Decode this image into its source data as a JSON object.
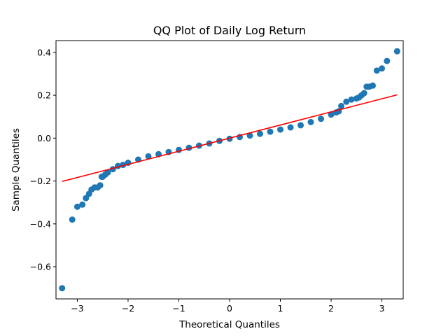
{
  "chart_data": {
    "type": "scatter",
    "title": "QQ Plot of Daily Log Return",
    "xlabel": "Theoretical Quantiles",
    "ylabel": "Sample Quantiles",
    "xlim": [
      -3.42,
      3.42
    ],
    "ylim": [
      -0.75,
      0.455
    ],
    "x_ticks": [
      -3,
      -2,
      -1,
      0,
      1,
      2,
      3
    ],
    "x_tick_labels": [
      "−3",
      "−2",
      "−1",
      "0",
      "1",
      "2",
      "3"
    ],
    "y_ticks": [
      -0.6,
      -0.4,
      -0.2,
      0.0,
      0.2,
      0.4
    ],
    "y_tick_labels": [
      "−0.6",
      "−0.4",
      "−0.2",
      "0.0",
      "0.2",
      "0.4"
    ],
    "grid": false,
    "series": [
      {
        "kind": "points",
        "color": "#1f77b4",
        "x": [
          -3.3,
          -3.1,
          -3.0,
          -2.9,
          -2.83,
          -2.77,
          -2.72,
          -2.66,
          -2.6,
          -2.55,
          -2.52,
          -2.5,
          -2.45,
          -2.4,
          -2.3,
          -2.2,
          -2.1,
          -2.0,
          -1.8,
          -1.6,
          -1.4,
          -1.2,
          -1.0,
          -0.8,
          -0.6,
          -0.4,
          -0.2,
          0.0,
          0.2,
          0.4,
          0.6,
          0.8,
          1.0,
          1.2,
          1.4,
          1.6,
          1.8,
          2.0,
          2.1,
          2.15,
          2.2,
          2.3,
          2.4,
          2.5,
          2.55,
          2.6,
          2.65,
          2.7,
          2.75,
          2.82,
          2.9,
          3.0,
          3.1,
          3.3
        ],
        "y": [
          -0.7,
          -0.38,
          -0.32,
          -0.31,
          -0.28,
          -0.26,
          -0.24,
          -0.23,
          -0.23,
          -0.22,
          -0.18,
          -0.18,
          -0.17,
          -0.16,
          -0.145,
          -0.13,
          -0.125,
          -0.115,
          -0.1,
          -0.085,
          -0.075,
          -0.065,
          -0.055,
          -0.045,
          -0.035,
          -0.025,
          -0.013,
          -0.003,
          0.005,
          0.012,
          0.02,
          0.03,
          0.04,
          0.05,
          0.06,
          0.075,
          0.09,
          0.11,
          0.12,
          0.125,
          0.15,
          0.17,
          0.18,
          0.185,
          0.19,
          0.2,
          0.21,
          0.24,
          0.24,
          0.245,
          0.315,
          0.325,
          0.36,
          0.405
        ]
      },
      {
        "kind": "reference-line",
        "color": "#ff0000",
        "x": [
          -3.3,
          3.3
        ],
        "y": [
          -0.202,
          0.202
        ]
      }
    ]
  }
}
